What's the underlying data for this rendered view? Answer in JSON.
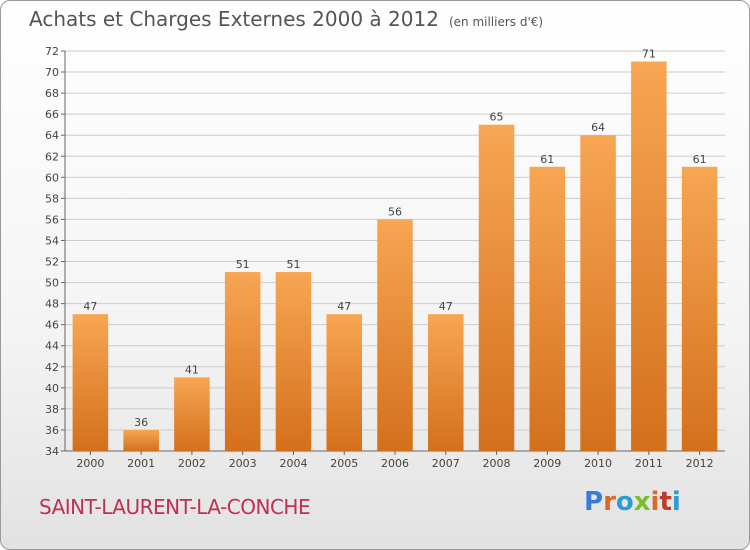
{
  "header": {
    "title": "Achats et Charges Externes 2000 à 2012",
    "subtitle": "(en milliers d'€)"
  },
  "footer": {
    "commune": "SAINT-LAURENT-LA-CONCHE",
    "logo": "Proxiti",
    "logo_colors": [
      "#3a7bd5",
      "#e0662a",
      "#2e9bd6",
      "#7abf2a",
      "#e0662a",
      "#c0392b",
      "#2e9bd6"
    ]
  },
  "colors": {
    "bar_light": "#f7a653",
    "bar_dark": "#d4701c",
    "grid": "#cccccc"
  },
  "chart_data": {
    "type": "bar",
    "categories": [
      "2000",
      "2001",
      "2002",
      "2003",
      "2004",
      "2005",
      "2006",
      "2007",
      "2008",
      "2009",
      "2010",
      "2011",
      "2012"
    ],
    "values": [
      47,
      36,
      41,
      51,
      51,
      47,
      56,
      47,
      65,
      61,
      64,
      71,
      61
    ],
    "ylim": [
      34,
      72
    ],
    "yticks": [
      34,
      36,
      38,
      40,
      42,
      44,
      46,
      48,
      50,
      52,
      54,
      56,
      58,
      60,
      62,
      64,
      66,
      68,
      70,
      72
    ],
    "grid": true,
    "show_value_labels": true
  }
}
